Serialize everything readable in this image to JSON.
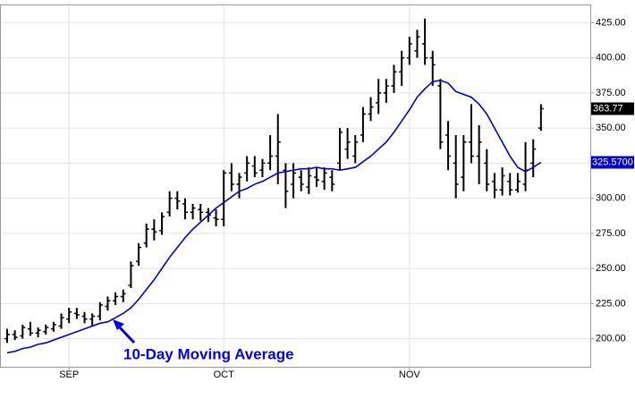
{
  "chart_data": {
    "type": "ohlc",
    "categories": [
      null,
      null,
      null,
      null,
      null,
      null,
      null,
      null,
      "SEP",
      null,
      null,
      null,
      null,
      null,
      null,
      null,
      null,
      null,
      null,
      null,
      null,
      null,
      null,
      null,
      null,
      null,
      null,
      null,
      "OCT",
      null,
      null,
      null,
      null,
      null,
      null,
      null,
      null,
      null,
      null,
      null,
      null,
      null,
      null,
      null,
      null,
      null,
      null,
      null,
      null,
      null,
      null,
      null,
      "NOV",
      null,
      null,
      null,
      null,
      null,
      null,
      null,
      null,
      null,
      null,
      null,
      null,
      null,
      null,
      null,
      null,
      null
    ],
    "open": [
      200,
      203,
      202,
      207,
      204,
      205,
      207,
      209,
      214,
      218,
      216,
      214,
      216,
      223,
      227,
      230,
      238,
      255,
      268,
      278,
      277,
      290,
      300,
      296,
      290,
      292,
      290,
      286,
      285,
      318,
      310,
      318,
      323,
      320,
      325,
      330,
      320,
      310,
      315,
      308,
      315,
      312,
      315,
      325,
      335,
      330,
      345,
      360,
      368,
      375,
      380,
      390,
      400,
      405,
      410,
      400,
      380,
      345,
      325,
      315,
      340,
      330,
      325,
      312,
      306,
      312,
      306,
      310,
      325,
      350
    ],
    "high": [
      207,
      206,
      210,
      212,
      208,
      210,
      212,
      218,
      222,
      222,
      219,
      218,
      226,
      230,
      233,
      235,
      255,
      268,
      282,
      285,
      290,
      305,
      305,
      300,
      296,
      296,
      293,
      292,
      320,
      325,
      318,
      330,
      330,
      328,
      345,
      360,
      325,
      325,
      320,
      322,
      322,
      322,
      320,
      350,
      350,
      345,
      365,
      372,
      385,
      385,
      395,
      405,
      415,
      420,
      428,
      405,
      385,
      355,
      345,
      345,
      367,
      352,
      335,
      318,
      322,
      318,
      318,
      340,
      342,
      367
    ],
    "low": [
      197,
      199,
      200,
      202,
      201,
      203,
      205,
      207,
      211,
      214,
      211,
      209,
      213,
      220,
      224,
      226,
      236,
      252,
      265,
      270,
      274,
      287,
      292,
      285,
      285,
      284,
      283,
      280,
      280,
      305,
      300,
      312,
      315,
      315,
      320,
      310,
      293,
      300,
      305,
      303,
      308,
      306,
      305,
      320,
      328,
      325,
      340,
      355,
      360,
      368,
      375,
      380,
      395,
      400,
      395,
      380,
      335,
      320,
      300,
      305,
      325,
      310,
      305,
      300,
      302,
      302,
      304,
      305,
      315,
      348
    ],
    "close": [
      203,
      201,
      208,
      204,
      206,
      208,
      210,
      215,
      219,
      217,
      214,
      216,
      224,
      227,
      230,
      232,
      252,
      265,
      278,
      276,
      287,
      300,
      298,
      290,
      293,
      290,
      288,
      285,
      318,
      310,
      315,
      325,
      318,
      325,
      330,
      340,
      305,
      318,
      310,
      316,
      313,
      318,
      310,
      347,
      340,
      340,
      360,
      365,
      375,
      380,
      390,
      400,
      410,
      415,
      400,
      395,
      340,
      330,
      310,
      340,
      330,
      340,
      310,
      306,
      316,
      306,
      312,
      320,
      335,
      363.77
    ],
    "color": "#000000",
    "close_last_label": "363.77",
    "ma": {
      "color": "#0000cc",
      "last_label": "325.5700",
      "values": [
        190,
        191,
        193,
        194,
        196,
        197,
        199,
        201,
        203,
        205,
        207,
        209,
        211,
        212,
        215,
        218,
        222,
        228,
        235,
        242,
        250,
        258,
        265,
        272,
        278,
        283,
        288,
        293,
        297,
        301,
        305,
        307,
        310,
        312,
        315,
        318,
        319,
        320,
        321,
        321,
        322,
        321,
        321,
        320,
        321,
        322,
        326,
        330,
        335,
        340,
        347,
        355,
        363,
        372,
        378,
        383,
        384,
        382,
        376,
        374,
        372,
        367,
        360,
        350,
        340,
        330,
        322,
        319,
        322,
        325.57
      ]
    },
    "annotation": "10-Day Moving Average",
    "ylim": [
      180,
      438
    ],
    "yticks": [
      {
        "value": 200,
        "label": "200.00"
      },
      {
        "value": 225,
        "label": "225.00"
      },
      {
        "value": 250,
        "label": "250.00"
      },
      {
        "value": 275,
        "label": "275.00"
      },
      {
        "value": 300,
        "label": "300.00"
      },
      {
        "value": 325,
        "label": "325.00"
      },
      {
        "value": 350,
        "label": "350.00"
      },
      {
        "value": 375,
        "label": "375.00"
      },
      {
        "value": 400,
        "label": "400.00"
      },
      {
        "value": 425,
        "label": "425.00"
      }
    ],
    "grid": true
  }
}
